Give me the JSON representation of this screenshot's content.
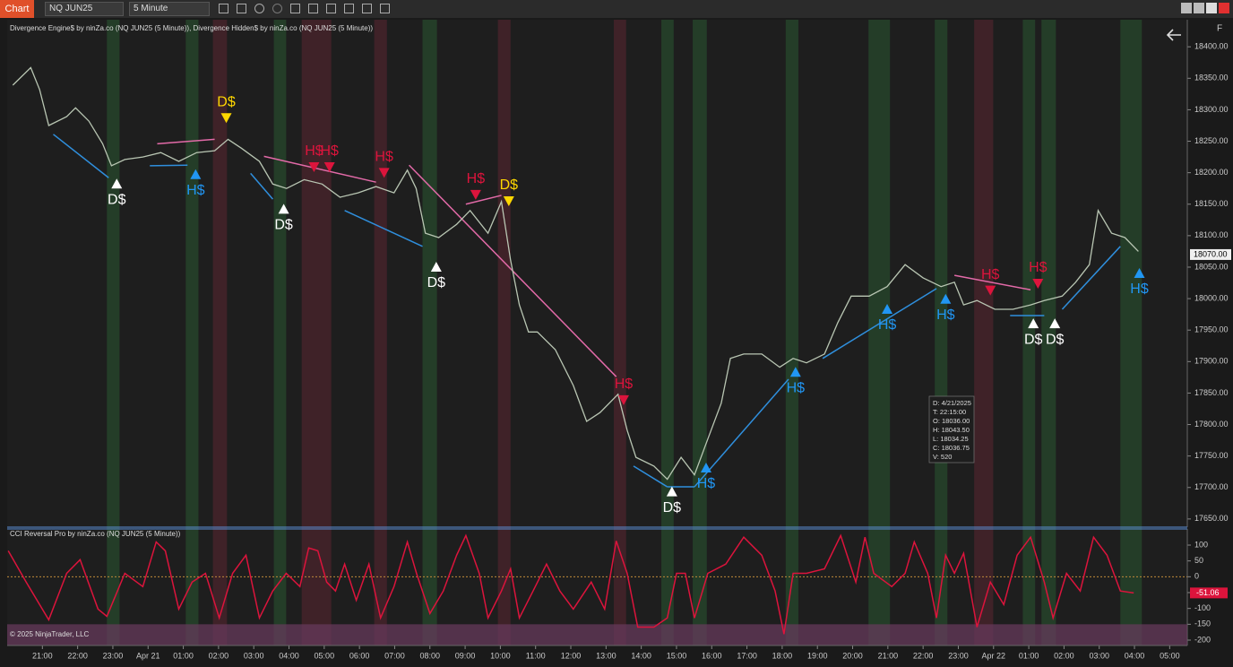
{
  "toolbar": {
    "tab": "Chart",
    "instrument": "NQ JUN25",
    "interval": "5 Minute",
    "side": "F"
  },
  "copyright": "© 2025 NinjaTrader, LLC",
  "info_box": [
    "D: 4/21/2025",
    "T: 22:15:00",
    "O: 18036.00",
    "H: 18043.50",
    "L: 18034.25",
    "C: 18036.75",
    "V: 520"
  ],
  "chart_data": [
    {
      "type": "line",
      "title": "Divergence Engine$ by ninZa.co (NQ JUN25 (5 Minute)), Divergence Hidden$ by ninZa.co (NQ JUN25 (5 Minute))",
      "color": "#b9c6b3",
      "xlim": [
        -1,
        32.5
      ],
      "ylim": [
        17637,
        18443
      ],
      "yticks": [
        {
          "value": 17650,
          "label": "17650.00"
        },
        {
          "value": 17700,
          "label": "17700.00"
        },
        {
          "value": 17750,
          "label": "17750.00"
        },
        {
          "value": 17800,
          "label": "17800.00"
        },
        {
          "value": 17850,
          "label": "17850.00"
        },
        {
          "value": 17900,
          "label": "17900.00"
        },
        {
          "value": 17950,
          "label": "17950.00"
        },
        {
          "value": 18000,
          "label": "18000.00"
        },
        {
          "value": 18050,
          "label": "18050.00"
        },
        {
          "value": 18100,
          "label": "18100.00"
        },
        {
          "value": 18150,
          "label": "18150.00"
        },
        {
          "value": 18200,
          "label": "18200.00"
        },
        {
          "value": 18250,
          "label": "18250.00"
        },
        {
          "value": 18300,
          "label": "18300.00"
        },
        {
          "value": 18350,
          "label": "18350.00"
        },
        {
          "value": 18400,
          "label": "18400.00"
        }
      ],
      "last": {
        "value": 18070,
        "label": "18070.00"
      },
      "x": [
        -0.84,
        -0.33,
        -0.08,
        0.18,
        0.69,
        0.94,
        1.32,
        1.71,
        1.96,
        2.34,
        2.85,
        3.36,
        3.87,
        4.38,
        4.89,
        5.27,
        5.65,
        6.16,
        6.54,
        6.93,
        7.43,
        7.94,
        8.45,
        8.96,
        9.47,
        9.98,
        10.36,
        10.61,
        10.87,
        11.25,
        11.76,
        12.14,
        12.65,
        13.03,
        13.29,
        13.54,
        13.8,
        14.05,
        14.56,
        15.07,
        15.45,
        15.83,
        16.34,
        16.6,
        16.85,
        17.36,
        17.74,
        18.13,
        18.51,
        18.89,
        19.27,
        19.53,
        19.91,
        20.42,
        20.93,
        21.31,
        21.69,
        22.2,
        22.58,
        22.96,
        23.47,
        23.98,
        24.49,
        25.0,
        25.51,
        25.89,
        26.15,
        26.53,
        27.04,
        27.55,
        28.05,
        28.44,
        28.95,
        29.33,
        29.72,
        29.97,
        30.35,
        30.73,
        31.11
      ],
      "values": [
        18339,
        18367,
        18332,
        18275,
        18289,
        18303,
        18282,
        18246,
        18211,
        18221,
        18225,
        18232,
        18218,
        18232,
        18235,
        18253,
        18239,
        18218,
        18182,
        18175,
        18189,
        18182,
        18161,
        18168,
        18178,
        18168,
        18204,
        18175,
        18104,
        18097,
        18118,
        18140,
        18104,
        18154,
        18061,
        17990,
        17947,
        17947,
        17919,
        17862,
        17805,
        17819,
        17848,
        17791,
        17748,
        17734,
        17713,
        17748,
        17720,
        17777,
        17834,
        17905,
        17912,
        17912,
        17891,
        17905,
        17898,
        17912,
        17962,
        18004,
        18004,
        18019,
        18054,
        18033,
        18019,
        18026,
        17990,
        17997,
        17983,
        17983,
        17990,
        17997,
        18004,
        18026,
        18054,
        18140,
        18104,
        18097,
        18075
      ],
      "bands": [
        {
          "x0": 1.83,
          "x1": 2.19,
          "color": "#26452a"
        },
        {
          "x0": 4.07,
          "x1": 4.43,
          "color": "#26452a"
        },
        {
          "x0": 6.57,
          "x1": 6.92,
          "color": "#26452a"
        },
        {
          "x0": 10.79,
          "x1": 11.2,
          "color": "#26452a"
        },
        {
          "x0": 17.57,
          "x1": 17.92,
          "color": "#26452a"
        },
        {
          "x0": 18.46,
          "x1": 18.86,
          "color": "#26452a"
        },
        {
          "x0": 21.1,
          "x1": 21.46,
          "color": "#26452a"
        },
        {
          "x0": 23.45,
          "x1": 24.06,
          "color": "#26452a"
        },
        {
          "x0": 25.33,
          "x1": 25.69,
          "color": "#26452a"
        },
        {
          "x0": 27.83,
          "x1": 28.18,
          "color": "#26452a"
        },
        {
          "x0": 28.36,
          "x1": 28.77,
          "color": "#26452a"
        },
        {
          "x0": 30.6,
          "x1": 31.21,
          "color": "#26452a"
        },
        {
          "x0": 4.84,
          "x1": 5.24,
          "color": "#47232a"
        },
        {
          "x0": 7.36,
          "x1": 8.2,
          "color": "#47232a"
        },
        {
          "x0": 9.42,
          "x1": 9.78,
          "color": "#47232a"
        },
        {
          "x0": 12.93,
          "x1": 13.29,
          "color": "#47232a"
        },
        {
          "x0": 16.22,
          "x1": 16.57,
          "color": "#47232a"
        },
        {
          "x0": 26.45,
          "x1": 26.99,
          "color": "#47232a"
        }
      ],
      "divergences": [
        {
          "x": [
            0.31,
            1.88
          ],
          "y": [
            18261,
            18192
          ],
          "color": "#2f8fdd"
        },
        {
          "x": [
            3.05,
            4.12
          ],
          "y": [
            18211,
            18212
          ],
          "color": "#2f8fdd"
        },
        {
          "x": [
            3.26,
            4.89
          ],
          "y": [
            18246,
            18253
          ],
          "color": "#e36aa8"
        },
        {
          "x": [
            5.91,
            6.54
          ],
          "y": [
            18199,
            18158
          ],
          "color": "#2f8fdd"
        },
        {
          "x": [
            6.29,
            9.47
          ],
          "y": [
            18226,
            18185
          ],
          "color": "#e36aa8"
        },
        {
          "x": [
            8.58,
            10.79
          ],
          "y": [
            18140,
            18083
          ],
          "color": "#2f8fdd"
        },
        {
          "x": [
            10.41,
            16.29
          ],
          "y": [
            18212,
            17876
          ],
          "color": "#e36aa8"
        },
        {
          "x": [
            12.02,
            13.03
          ],
          "y": [
            18150,
            18164
          ],
          "color": "#e36aa8"
        },
        {
          "x": [
            16.78,
            17.74
          ],
          "y": [
            17734,
            17701
          ],
          "color": "#2f8fdd"
        },
        {
          "x": [
            17.74,
            18.51
          ],
          "y": [
            17701,
            17701
          ],
          "color": "#2f8fdd"
        },
        {
          "x": [
            18.51,
            21.18
          ],
          "y": [
            17701,
            17872
          ],
          "color": "#2f8fdd"
        },
        {
          "x": [
            22.15,
            25.38
          ],
          "y": [
            17905,
            18016
          ],
          "color": "#2f8fdd"
        },
        {
          "x": [
            25.89,
            28.05
          ],
          "y": [
            18037,
            18014
          ],
          "color": "#e36aa8"
        },
        {
          "x": [
            27.47,
            28.44
          ],
          "y": [
            17973,
            17973
          ],
          "color": "#2f8fdd"
        },
        {
          "x": [
            28.95,
            30.6
          ],
          "y": [
            17983,
            18083
          ],
          "color": "#2f8fdd"
        }
      ],
      "signals": [
        {
          "x": 2.11,
          "y": 18182,
          "label": "D$",
          "color": "#ffffff",
          "dir": "up"
        },
        {
          "x": 4.35,
          "y": 18197,
          "label": "H$",
          "color": "#2196f3",
          "dir": "up"
        },
        {
          "x": 5.22,
          "y": 18286,
          "label": "D$",
          "color": "#ffd700",
          "dir": "down"
        },
        {
          "x": 6.85,
          "y": 18142,
          "label": "D$",
          "color": "#ffffff",
          "dir": "up"
        },
        {
          "x": 7.71,
          "y": 18208,
          "label": "H$",
          "color": "#dc143c",
          "dir": "down"
        },
        {
          "x": 8.15,
          "y": 18208,
          "label": "H$",
          "color": "#dc143c",
          "dir": "down"
        },
        {
          "x": 9.7,
          "y": 18199,
          "label": "H$",
          "color": "#dc143c",
          "dir": "down"
        },
        {
          "x": 11.18,
          "y": 18050,
          "label": "D$",
          "color": "#ffffff",
          "dir": "up"
        },
        {
          "x": 12.3,
          "y": 18164,
          "label": "H$",
          "color": "#dc143c",
          "dir": "down"
        },
        {
          "x": 13.24,
          "y": 18154,
          "label": "D$",
          "color": "#ffd700",
          "dir": "down"
        },
        {
          "x": 16.5,
          "y": 17838,
          "label": "H$",
          "color": "#dc143c",
          "dir": "down"
        },
        {
          "x": 17.87,
          "y": 17693,
          "label": "D$",
          "color": "#ffffff",
          "dir": "up"
        },
        {
          "x": 18.84,
          "y": 17731,
          "label": "H$",
          "color": "#2196f3",
          "dir": "up"
        },
        {
          "x": 21.38,
          "y": 17883,
          "label": "H$",
          "color": "#2196f3",
          "dir": "up"
        },
        {
          "x": 23.98,
          "y": 17983,
          "label": "H$",
          "color": "#2196f3",
          "dir": "up"
        },
        {
          "x": 25.64,
          "y": 17999,
          "label": "H$",
          "color": "#2196f3",
          "dir": "up"
        },
        {
          "x": 26.91,
          "y": 18012,
          "label": "H$",
          "color": "#dc143c",
          "dir": "down"
        },
        {
          "x": 28.26,
          "y": 18023,
          "label": "H$",
          "color": "#dc143c",
          "dir": "down"
        },
        {
          "x": 28.13,
          "y": 17960,
          "label": "D$",
          "color": "#ffffff",
          "dir": "up"
        },
        {
          "x": 28.74,
          "y": 17960,
          "label": "D$",
          "color": "#ffffff",
          "dir": "up"
        },
        {
          "x": 31.14,
          "y": 18040,
          "label": "H$",
          "color": "#2196f3",
          "dir": "up"
        }
      ]
    },
    {
      "type": "line",
      "title": "CCI Reversal Pro by ninZa.co (NQ JUN25 (5 Minute))",
      "color": "#dc143c",
      "xlim": [
        -1,
        32.5
      ],
      "ylim": [
        -217,
        151
      ],
      "yticks": [
        100,
        50,
        0,
        -50,
        -100,
        -150,
        -200
      ],
      "last": -51.06,
      "xticks": [
        {
          "value": 0,
          "label": "21:00"
        },
        {
          "value": 1,
          "label": "22:00"
        },
        {
          "value": 2,
          "label": "23:00"
        },
        {
          "value": 3,
          "label": "Apr 21"
        },
        {
          "value": 4,
          "label": "01:00"
        },
        {
          "value": 5,
          "label": "02:00"
        },
        {
          "value": 6,
          "label": "03:00"
        },
        {
          "value": 7,
          "label": "04:00"
        },
        {
          "value": 8,
          "label": "05:00"
        },
        {
          "value": 9,
          "label": "06:00"
        },
        {
          "value": 10,
          "label": "07:00"
        },
        {
          "value": 11,
          "label": "08:00"
        },
        {
          "value": 12,
          "label": "09:00"
        },
        {
          "value": 13,
          "label": "10:00"
        },
        {
          "value": 14,
          "label": "11:00"
        },
        {
          "value": 15,
          "label": "12:00"
        },
        {
          "value": 16,
          "label": "13:00"
        },
        {
          "value": 17,
          "label": "14:00"
        },
        {
          "value": 18,
          "label": "15:00"
        },
        {
          "value": 19,
          "label": "16:00"
        },
        {
          "value": 20,
          "label": "17:00"
        },
        {
          "value": 21,
          "label": "18:00"
        },
        {
          "value": 22,
          "label": "19:00"
        },
        {
          "value": 23,
          "label": "20:00"
        },
        {
          "value": 24,
          "label": "21:00"
        },
        {
          "value": 25,
          "label": "22:00"
        },
        {
          "value": 26,
          "label": "23:00"
        },
        {
          "value": 27,
          "label": "Apr 22"
        },
        {
          "value": 28,
          "label": "01:00"
        },
        {
          "value": 29,
          "label": "02:00"
        },
        {
          "value": 30,
          "label": "03:00"
        },
        {
          "value": 31,
          "label": "04:00"
        },
        {
          "value": 32,
          "label": "05:00"
        }
      ],
      "x": [
        -0.97,
        -0.46,
        0.18,
        0.69,
        1.07,
        1.58,
        1.83,
        2.34,
        2.85,
        3.23,
        3.49,
        3.87,
        4.25,
        4.63,
        5.02,
        5.4,
        5.78,
        6.16,
        6.54,
        6.92,
        7.31,
        7.56,
        7.82,
        8.07,
        8.32,
        8.58,
        8.91,
        9.27,
        9.6,
        9.98,
        10.36,
        10.62,
        11.0,
        11.38,
        11.76,
        12.02,
        12.4,
        12.65,
        13.03,
        13.29,
        13.54,
        13.93,
        14.31,
        14.69,
        15.07,
        15.58,
        15.96,
        16.29,
        16.6,
        16.9,
        17.36,
        17.74,
        18.0,
        18.25,
        18.51,
        18.89,
        19.4,
        19.91,
        20.42,
        20.8,
        21.05,
        21.31,
        21.69,
        22.2,
        22.66,
        23.09,
        23.35,
        23.6,
        24.11,
        24.49,
        24.75,
        25.13,
        25.38,
        25.64,
        25.89,
        26.15,
        26.53,
        26.91,
        27.29,
        27.67,
        28.05,
        28.44,
        28.69,
        29.07,
        29.46,
        29.84,
        30.22,
        30.6,
        30.98
      ],
      "values": [
        82,
        -17,
        -136,
        11,
        54,
        -102,
        -125,
        11,
        -31,
        110,
        82,
        -102,
        -17,
        11,
        -130,
        11,
        68,
        -130,
        -45,
        11,
        -31,
        91,
        82,
        -17,
        -45,
        40,
        -74,
        40,
        -130,
        -31,
        110,
        11,
        -116,
        -45,
        68,
        130,
        11,
        -130,
        -45,
        25,
        -130,
        -45,
        40,
        -45,
        -102,
        -17,
        -102,
        113,
        11,
        -159,
        -159,
        -130,
        11,
        11,
        -130,
        11,
        40,
        125,
        68,
        -45,
        -181,
        11,
        11,
        25,
        130,
        -17,
        125,
        11,
        -31,
        11,
        110,
        11,
        -130,
        68,
        11,
        74,
        -159,
        -17,
        -88,
        68,
        125,
        -17,
        -130,
        11,
        -45,
        125,
        68,
        -45,
        -51.06
      ]
    }
  ]
}
